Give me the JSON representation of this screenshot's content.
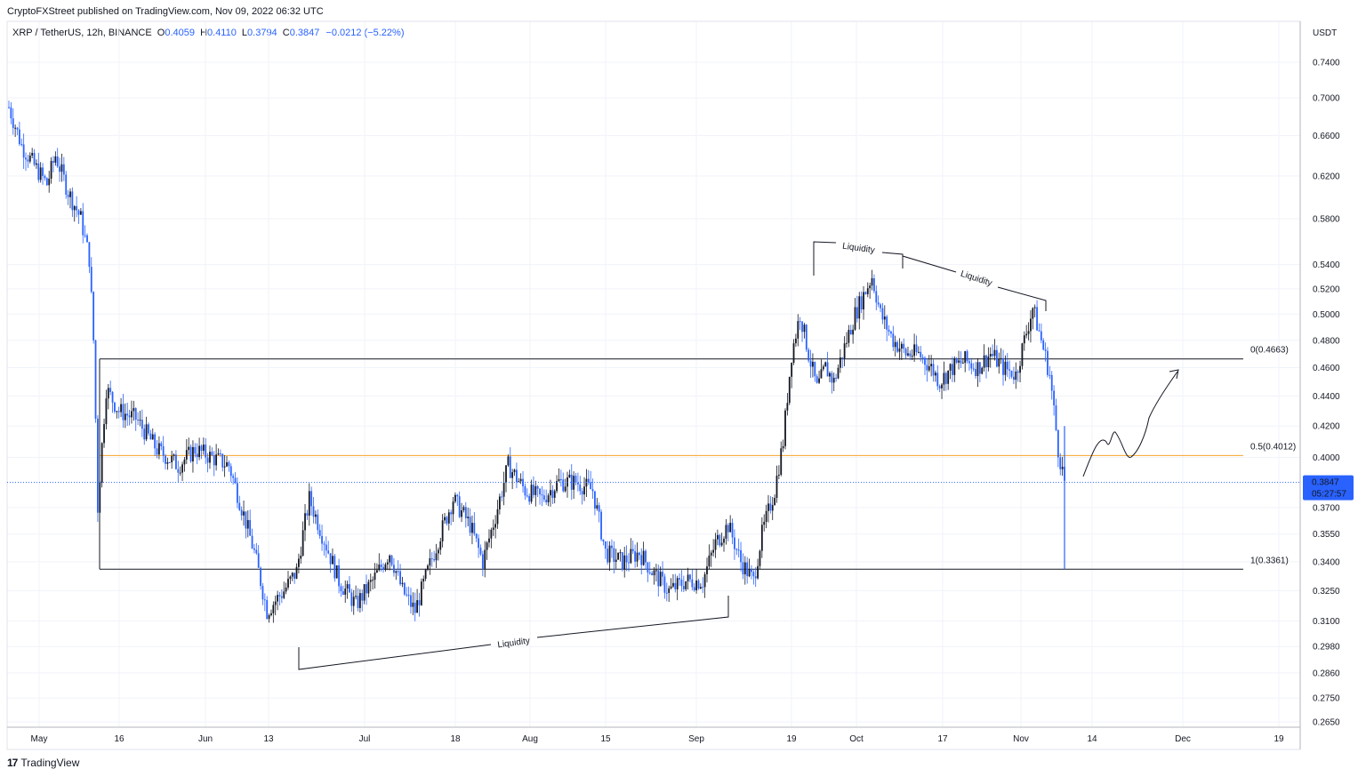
{
  "header": {
    "credit": "CryptoFXStreet published on TradingView.com, Nov 09, 2022 06:32 UTC",
    "symbol": "XRP / TetherUS, 12h, BINANCE",
    "o_label": "O",
    "o": "0.4059",
    "h_label": "H",
    "h": "0.4110",
    "l_label": "L",
    "l": "0.3794",
    "c_label": "C",
    "c": "0.3847",
    "change": "−0.0212 (−5.22%)"
  },
  "footer": {
    "brand_mark": "17",
    "brand": "TradingView"
  },
  "price_badge": {
    "price": "0.3847",
    "countdown": "05:27:57"
  },
  "chart_data": {
    "type": "candlestick",
    "currency_label": "USDT",
    "y_scale": "log",
    "ylim": [
      0.262,
      0.77
    ],
    "y_ticks": [
      "0.7400",
      "0.7000",
      "0.6600",
      "0.6200",
      "0.5800",
      "0.5400",
      "0.5200",
      "0.5000",
      "0.4800",
      "0.4600",
      "0.4400",
      "0.4200",
      "0.4000",
      "0.3700",
      "0.3550",
      "0.3400",
      "0.3250",
      "0.3100",
      "0.2980",
      "0.2860",
      "0.2750",
      "0.2650"
    ],
    "x_ticks": [
      "May",
      "16",
      "Jun",
      "13",
      "Jul",
      "18",
      "Aug",
      "15",
      "Sep",
      "19",
      "Oct",
      "17",
      "Nov",
      "14",
      "Dec",
      "19"
    ],
    "last_price": 0.3847,
    "fib_levels": [
      {
        "label": "0(0.4663)",
        "value": 0.4663,
        "color": "#131722"
      },
      {
        "label": "0.5(0.4012)",
        "value": 0.4012,
        "color": "#f7a52b"
      },
      {
        "label": "1(0.3361)",
        "value": 0.3361,
        "color": "#131722"
      }
    ],
    "annotations": [
      "Liquidity",
      "Liquidity",
      "Liquidity"
    ],
    "colors": {
      "up": "#131722",
      "down": "#2962ff",
      "price_line": "#2962ff"
    }
  }
}
